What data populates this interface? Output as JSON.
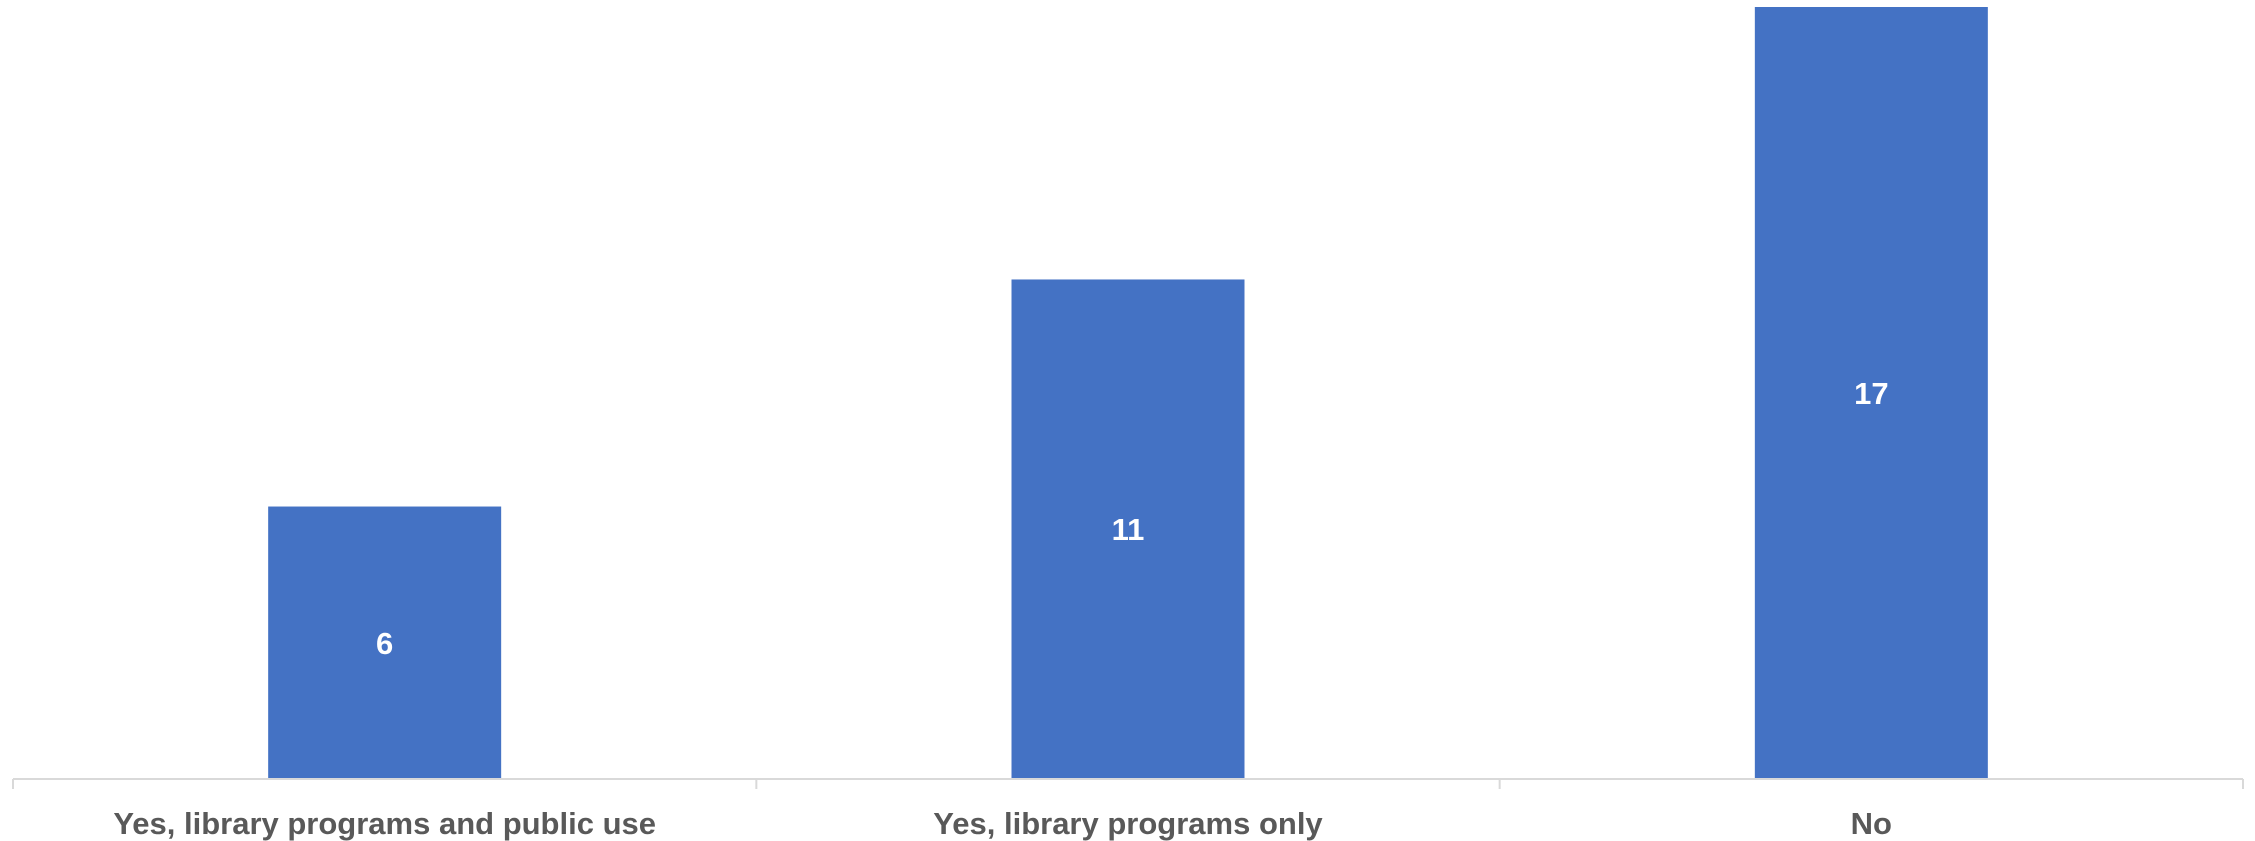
{
  "chart_data": {
    "type": "bar",
    "title": "",
    "xlabel": "",
    "ylabel": "",
    "categories": [
      "Yes, library programs and public use",
      "Yes, library programs only",
      "No"
    ],
    "values": [
      6,
      11,
      17
    ],
    "ylim": [
      0,
      17
    ],
    "grid": false,
    "legend": "none",
    "bar_color": "#4472C4",
    "data_label_color": "#FFFFFF",
    "axis_color": "#D9D9D9",
    "category_label_color": "#595959"
  }
}
